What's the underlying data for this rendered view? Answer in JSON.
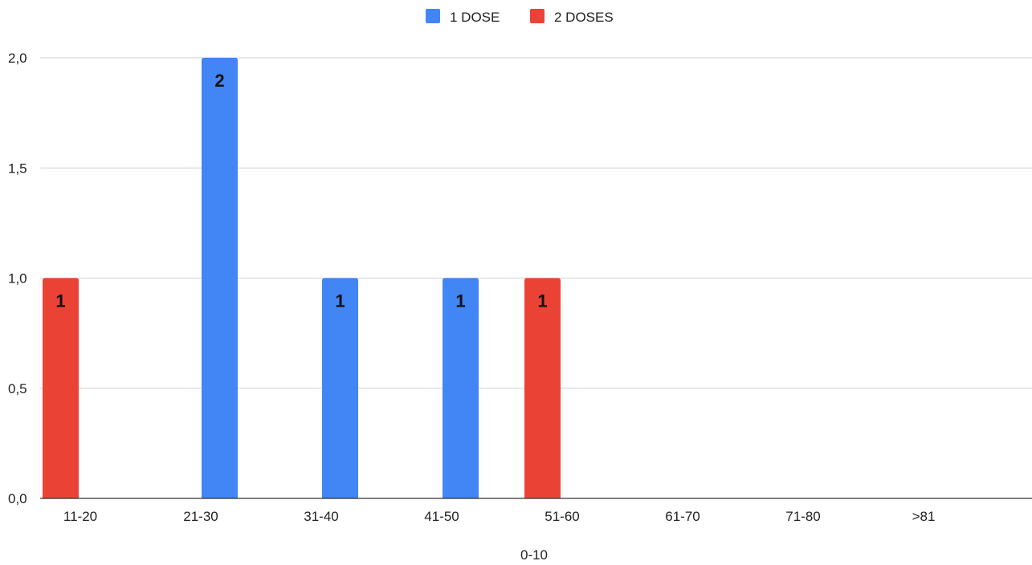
{
  "chart_data": {
    "type": "bar",
    "title": "",
    "xlabel": "0-10",
    "ylabel": "",
    "categories": [
      "11-20",
      "21-30",
      "31-40",
      "41-50",
      "51-60",
      "61-70",
      "71-80",
      ">81"
    ],
    "series": [
      {
        "name": "1 DOSE",
        "color": "#4285F4",
        "values": [
          null,
          2,
          1,
          1,
          null,
          null,
          null,
          null
        ]
      },
      {
        "name": "2 DOSES",
        "color": "#EA4335",
        "values": [
          1,
          null,
          null,
          null,
          1,
          null,
          null,
          null
        ]
      }
    ],
    "ylim": [
      0,
      2
    ],
    "yticks": [
      "0,0",
      "0,5",
      "1,0",
      "1,5",
      "2,0"
    ],
    "ytick_values": [
      0,
      0.5,
      1,
      1.5,
      2
    ],
    "grid": true,
    "legend_position": "top-center",
    "data_labels": true
  }
}
